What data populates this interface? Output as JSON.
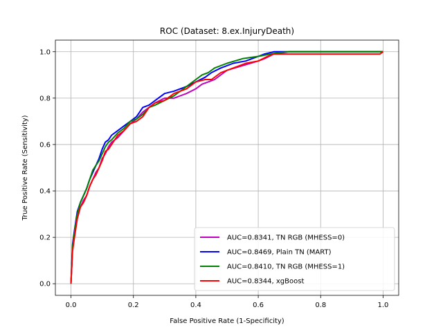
{
  "chart_data": {
    "type": "line",
    "title": "ROC (Dataset: 8.ex.InjuryDeath)",
    "xlabel": "False Positive Rate (1-Specificity)",
    "ylabel": "True Positive Rate (Sensitivity)",
    "xlim": [
      -0.05,
      1.05
    ],
    "ylim": [
      -0.05,
      1.05
    ],
    "xticks": [
      "0.0",
      "0.2",
      "0.4",
      "0.6",
      "0.8",
      "1.0"
    ],
    "yticks": [
      "0.0",
      "0.2",
      "0.4",
      "0.6",
      "0.8",
      "1.0"
    ],
    "grid": true,
    "legend_position": "lower-right",
    "series": [
      {
        "name": "AUC=0.8341, TN RGB (MHESS=0)",
        "color": "#bf00bf",
        "x": [
          0.0,
          0.005,
          0.01,
          0.02,
          0.03,
          0.04,
          0.05,
          0.06,
          0.07,
          0.08,
          0.09,
          0.1,
          0.11,
          0.12,
          0.13,
          0.15,
          0.17,
          0.19,
          0.21,
          0.23,
          0.25,
          0.27,
          0.3,
          0.33,
          0.35,
          0.37,
          0.4,
          0.42,
          0.44,
          0.46,
          0.5,
          0.55,
          0.6,
          0.62,
          0.65,
          0.7,
          0.8,
          1.0
        ],
        "y": [
          0.0,
          0.15,
          0.2,
          0.28,
          0.33,
          0.36,
          0.38,
          0.42,
          0.45,
          0.48,
          0.5,
          0.54,
          0.56,
          0.59,
          0.61,
          0.63,
          0.66,
          0.69,
          0.71,
          0.74,
          0.76,
          0.78,
          0.8,
          0.8,
          0.81,
          0.82,
          0.84,
          0.86,
          0.87,
          0.88,
          0.92,
          0.94,
          0.96,
          0.97,
          0.99,
          1.0,
          1.0,
          1.0
        ]
      },
      {
        "name": "AUC=0.8469, Plain TN (MART)",
        "color": "#0000ff",
        "x": [
          0.0,
          0.005,
          0.01,
          0.02,
          0.03,
          0.04,
          0.05,
          0.06,
          0.07,
          0.08,
          0.09,
          0.1,
          0.11,
          0.12,
          0.13,
          0.15,
          0.17,
          0.19,
          0.21,
          0.23,
          0.25,
          0.27,
          0.3,
          0.33,
          0.35,
          0.37,
          0.4,
          0.43,
          0.45,
          0.48,
          0.52,
          0.56,
          0.6,
          0.62,
          0.65,
          0.8,
          1.0
        ],
        "y": [
          0.0,
          0.17,
          0.22,
          0.31,
          0.35,
          0.38,
          0.41,
          0.45,
          0.48,
          0.51,
          0.54,
          0.58,
          0.61,
          0.62,
          0.64,
          0.66,
          0.68,
          0.7,
          0.72,
          0.76,
          0.77,
          0.79,
          0.82,
          0.83,
          0.84,
          0.85,
          0.87,
          0.89,
          0.91,
          0.93,
          0.95,
          0.96,
          0.98,
          0.99,
          1.0,
          1.0,
          1.0
        ]
      },
      {
        "name": "AUC=0.8410, TN RGB (MHESS=1)",
        "color": "#008000",
        "x": [
          0.0,
          0.005,
          0.01,
          0.02,
          0.03,
          0.04,
          0.05,
          0.06,
          0.07,
          0.08,
          0.09,
          0.1,
          0.11,
          0.12,
          0.13,
          0.15,
          0.17,
          0.19,
          0.21,
          0.23,
          0.25,
          0.27,
          0.3,
          0.33,
          0.35,
          0.37,
          0.4,
          0.42,
          0.44,
          0.46,
          0.5,
          0.55,
          0.6,
          0.64,
          0.66,
          0.7,
          0.8,
          1.0
        ],
        "y": [
          0.0,
          0.16,
          0.21,
          0.3,
          0.35,
          0.38,
          0.41,
          0.45,
          0.49,
          0.51,
          0.53,
          0.56,
          0.59,
          0.61,
          0.62,
          0.65,
          0.67,
          0.7,
          0.71,
          0.73,
          0.76,
          0.77,
          0.79,
          0.81,
          0.83,
          0.85,
          0.88,
          0.9,
          0.91,
          0.93,
          0.95,
          0.97,
          0.98,
          0.99,
          0.995,
          1.0,
          1.0,
          1.0
        ]
      },
      {
        "name": "AUC=0.8344, xgBoost",
        "color": "#ff0000",
        "x": [
          0.0,
          0.005,
          0.01,
          0.02,
          0.03,
          0.04,
          0.05,
          0.06,
          0.07,
          0.08,
          0.09,
          0.1,
          0.11,
          0.12,
          0.13,
          0.15,
          0.17,
          0.19,
          0.21,
          0.23,
          0.25,
          0.27,
          0.3,
          0.33,
          0.35,
          0.37,
          0.4,
          0.43,
          0.45,
          0.48,
          0.52,
          0.56,
          0.6,
          0.63,
          0.65,
          0.8,
          0.99,
          1.0
        ],
        "y": [
          0.0,
          0.14,
          0.19,
          0.28,
          0.33,
          0.35,
          0.38,
          0.42,
          0.45,
          0.47,
          0.5,
          0.53,
          0.57,
          0.58,
          0.6,
          0.64,
          0.66,
          0.69,
          0.7,
          0.72,
          0.76,
          0.78,
          0.79,
          0.82,
          0.83,
          0.84,
          0.87,
          0.88,
          0.88,
          0.91,
          0.93,
          0.95,
          0.96,
          0.98,
          0.99,
          0.99,
          0.99,
          1.0
        ]
      }
    ]
  }
}
